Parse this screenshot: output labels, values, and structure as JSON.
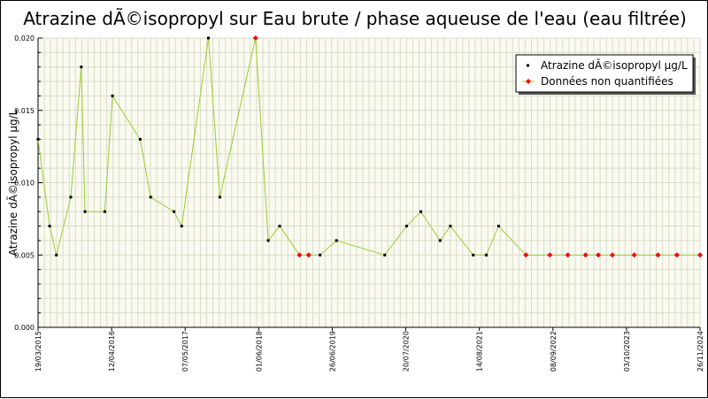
{
  "chart_data": {
    "type": "line",
    "title": "Atrazine dÃ©isopropyl sur Eau brute / phase aqueuse de l'eau (eau filtrée)",
    "ylabel": "Atrazine dÃ©isopropyl µg/L",
    "xlabel": "",
    "ylim": [
      0,
      0.02
    ],
    "yticks": [
      "0.000",
      "0.005",
      "0.010",
      "0.015",
      "0.020"
    ],
    "xlim": [
      "2015-03-19",
      "2024-11-26"
    ],
    "xtick_labels": [
      "19/03/2015",
      "12/04/2016",
      "07/05/2017",
      "01/06/2018",
      "26/06/2019",
      "20/07/2020",
      "14/08/2021",
      "08/09/2022",
      "03/10/2023",
      "26/11/2024"
    ],
    "grid": true,
    "legend_position": "top-right",
    "colors": {
      "line": "#9acd32",
      "quantified_marker": "#000000",
      "non_quantified_marker": "#ff0000",
      "grid": "#d8dcc8",
      "plot_background": "#fafaf0"
    },
    "series": [
      {
        "name": "Atrazine dÃ©isopropyl µg/L",
        "marker_color": "#000000",
        "points": [
          {
            "x": "2015-03-19",
            "y": 0.013
          },
          {
            "x": "2015-05-20",
            "y": 0.007
          },
          {
            "x": "2015-06-25",
            "y": 0.005
          },
          {
            "x": "2015-09-10",
            "y": 0.009
          },
          {
            "x": "2015-11-05",
            "y": 0.018
          },
          {
            "x": "2015-11-25",
            "y": 0.008
          },
          {
            "x": "2016-03-10",
            "y": 0.008
          },
          {
            "x": "2016-04-20",
            "y": 0.016
          },
          {
            "x": "2016-09-15",
            "y": 0.013
          },
          {
            "x": "2016-11-10",
            "y": 0.009
          },
          {
            "x": "2017-03-15",
            "y": 0.008
          },
          {
            "x": "2017-04-25",
            "y": 0.007
          },
          {
            "x": "2017-09-15",
            "y": 0.02
          },
          {
            "x": "2017-11-15",
            "y": 0.009
          },
          {
            "x": "2018-08-01",
            "y": 0.006
          },
          {
            "x": "2018-10-01",
            "y": 0.007
          },
          {
            "x": "2019-05-05",
            "y": 0.005
          },
          {
            "x": "2019-08-01",
            "y": 0.006
          },
          {
            "x": "2020-04-15",
            "y": 0.005
          },
          {
            "x": "2020-08-10",
            "y": 0.007
          },
          {
            "x": "2020-10-25",
            "y": 0.008
          },
          {
            "x": "2021-02-05",
            "y": 0.006
          },
          {
            "x": "2021-04-01",
            "y": 0.007
          },
          {
            "x": "2021-08-01",
            "y": 0.005
          },
          {
            "x": "2021-10-10",
            "y": 0.005
          },
          {
            "x": "2021-12-15",
            "y": 0.007
          }
        ]
      },
      {
        "name": "Données non quantifiées",
        "marker_color": "#ff0000",
        "points": [
          {
            "x": "2018-05-25",
            "y": 0.02
          },
          {
            "x": "2019-01-15",
            "y": 0.005
          },
          {
            "x": "2019-03-05",
            "y": 0.005
          },
          {
            "x": "2022-05-10",
            "y": 0.005
          },
          {
            "x": "2022-09-15",
            "y": 0.005
          },
          {
            "x": "2022-12-20",
            "y": 0.005
          },
          {
            "x": "2023-03-25",
            "y": 0.005
          },
          {
            "x": "2023-06-01",
            "y": 0.005
          },
          {
            "x": "2023-08-15",
            "y": 0.005
          },
          {
            "x": "2023-12-10",
            "y": 0.005
          },
          {
            "x": "2024-04-15",
            "y": 0.005
          },
          {
            "x": "2024-07-25",
            "y": 0.005
          },
          {
            "x": "2024-11-26",
            "y": 0.005
          }
        ]
      }
    ]
  }
}
